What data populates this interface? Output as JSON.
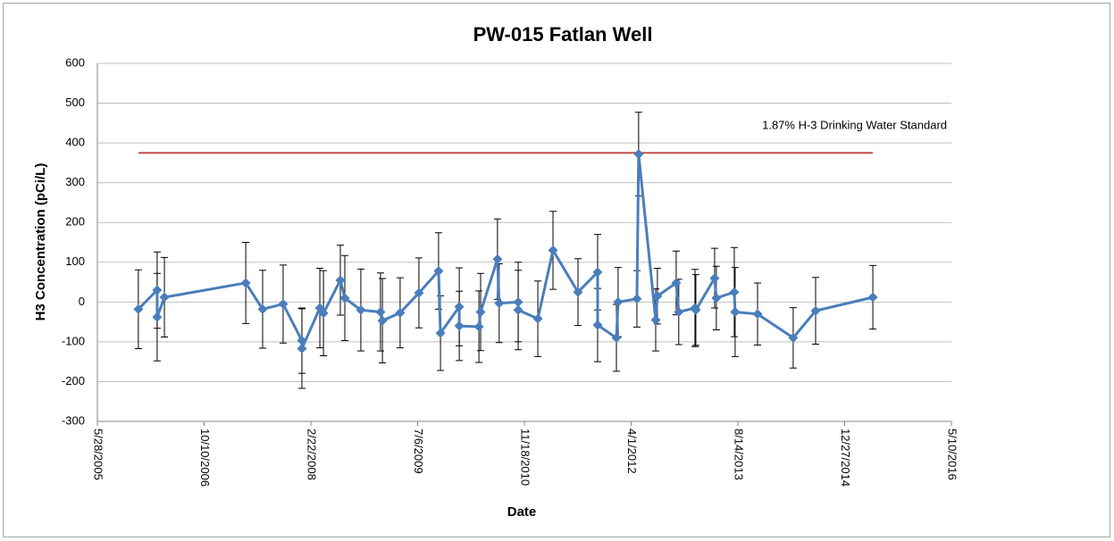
{
  "chart_data": {
    "type": "line",
    "title": "PW-015 Fatlan Well",
    "xlabel": "Date",
    "ylabel": "H3 Concentration (pCi/L)",
    "xlim": [
      "2005-05-28",
      "2016-05-10"
    ],
    "xticks": [
      {
        "value": "2005-05-28",
        "label": "5/28/2005"
      },
      {
        "value": "2006-10-10",
        "label": "10/10/2006"
      },
      {
        "value": "2008-02-22",
        "label": "2/22/2008"
      },
      {
        "value": "2009-07-06",
        "label": "7/6/2009"
      },
      {
        "value": "2010-11-18",
        "label": "11/18/2010"
      },
      {
        "value": "2012-04-01",
        "label": "4/1/2012"
      },
      {
        "value": "2013-08-14",
        "label": "8/14/2013"
      },
      {
        "value": "2014-12-27",
        "label": "12/27/2014"
      },
      {
        "value": "2016-05-10",
        "label": "5/10/2016"
      }
    ],
    "ylim": [
      -300,
      600
    ],
    "yticks": [
      -300,
      -200,
      -100,
      0,
      100,
      200,
      300,
      400,
      500,
      600
    ],
    "grid": true,
    "x": [
      "2005-12-06",
      "2006-03-04",
      "2006-03-04",
      "2006-04-07",
      "2007-04-23",
      "2007-07-11",
      "2007-10-15",
      "2008-01-11",
      "2008-01-11",
      "2008-04-04",
      "2008-04-21",
      "2008-07-09",
      "2008-07-30",
      "2008-10-13",
      "2009-01-13",
      "2009-01-22",
      "2009-04-15",
      "2009-07-12",
      "2009-10-12",
      "2009-10-21",
      "2010-01-17",
      "2010-01-17",
      "2010-04-19",
      "2010-04-27",
      "2010-07-15",
      "2010-07-23",
      "2010-10-20",
      "2010-10-20",
      "2011-01-20",
      "2011-04-01",
      "2011-07-27",
      "2011-10-27",
      "2011-10-27",
      "2012-01-23",
      "2012-01-31",
      "2012-04-28",
      "2012-05-06",
      "2012-07-25",
      "2012-08-02",
      "2012-10-29",
      "2012-11-10",
      "2013-01-25",
      "2013-01-29",
      "2013-04-27",
      "2013-05-05",
      "2013-07-28",
      "2013-08-01",
      "2013-11-14",
      "2014-04-30",
      "2014-08-13",
      "2015-05-08"
    ],
    "series": [
      {
        "color": "#4a7ebb",
        "values": [
          -18,
          30,
          -38,
          12,
          48,
          -18,
          -5,
          -97,
          -117,
          -15,
          -28,
          55,
          10,
          -20,
          -25,
          -47,
          -27,
          23,
          78,
          -78,
          -12,
          -60,
          -62,
          -25,
          108,
          -3,
          0,
          -20,
          -42,
          130,
          25,
          75,
          -58,
          -90,
          0,
          8,
          372,
          -45,
          15,
          48,
          -25,
          -15,
          -20,
          60,
          10,
          25,
          -25,
          -30,
          -90,
          -22,
          12
        ],
        "errors": [
          99,
          96,
          110,
          100,
          102,
          98,
          98,
          82,
          100,
          100,
          107,
          88,
          107,
          103,
          98,
          106,
          88,
          88,
          96,
          94,
          98,
          87,
          90,
          97,
          101,
          99,
          100,
          100,
          95,
          98,
          84,
          95,
          92,
          84,
          87,
          71,
          105,
          78,
          70,
          80,
          82,
          97,
          89,
          75,
          80,
          112,
          112,
          78,
          76,
          84,
          80
        ]
      }
    ],
    "reference": {
      "label": "1.87% H-3 Drinking Water Standard",
      "value": 375,
      "color": "#c0504d",
      "x": [
        "2005-12-06",
        "2015-05-08"
      ]
    }
  }
}
